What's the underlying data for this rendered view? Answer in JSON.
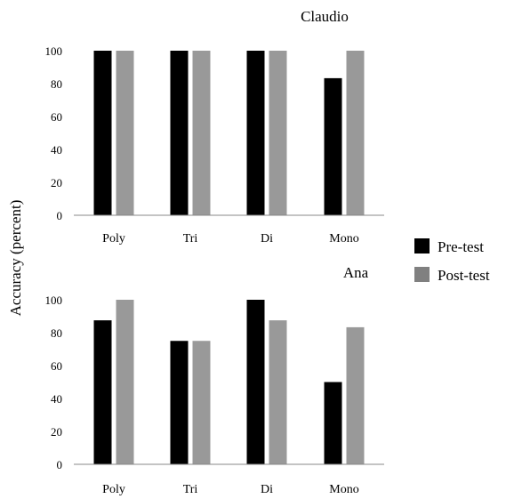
{
  "chart_data": {
    "type": "bar",
    "ylabel": "Accuracy (percent)",
    "ylim": [
      0,
      100
    ],
    "yticks": [
      0,
      20,
      40,
      60,
      80,
      100
    ],
    "legend": {
      "placement": "right",
      "entries": [
        {
          "name": "Pre-test",
          "color": "#000000"
        },
        {
          "name": "Post-test",
          "color": "#808080"
        }
      ]
    },
    "panels": [
      {
        "title": "Claudio",
        "categories": [
          "Poly",
          "Tri",
          "Di",
          "Mono"
        ],
        "series": [
          {
            "name": "Pre-test",
            "color": "#000000",
            "values": [
              100,
              100,
              100,
              83.3
            ]
          },
          {
            "name": "Post-test",
            "color": "#999999",
            "values": [
              100,
              100,
              100,
              100
            ]
          }
        ]
      },
      {
        "title": "Ana",
        "categories": [
          "Poly",
          "Tri",
          "Di",
          "Mono"
        ],
        "series": [
          {
            "name": "Pre-test",
            "color": "#000000",
            "values": [
              87.5,
              75,
              100,
              50
            ]
          },
          {
            "name": "Post-test",
            "color": "#999999",
            "values": [
              100,
              75,
              87.5,
              83.3
            ]
          }
        ]
      }
    ]
  }
}
